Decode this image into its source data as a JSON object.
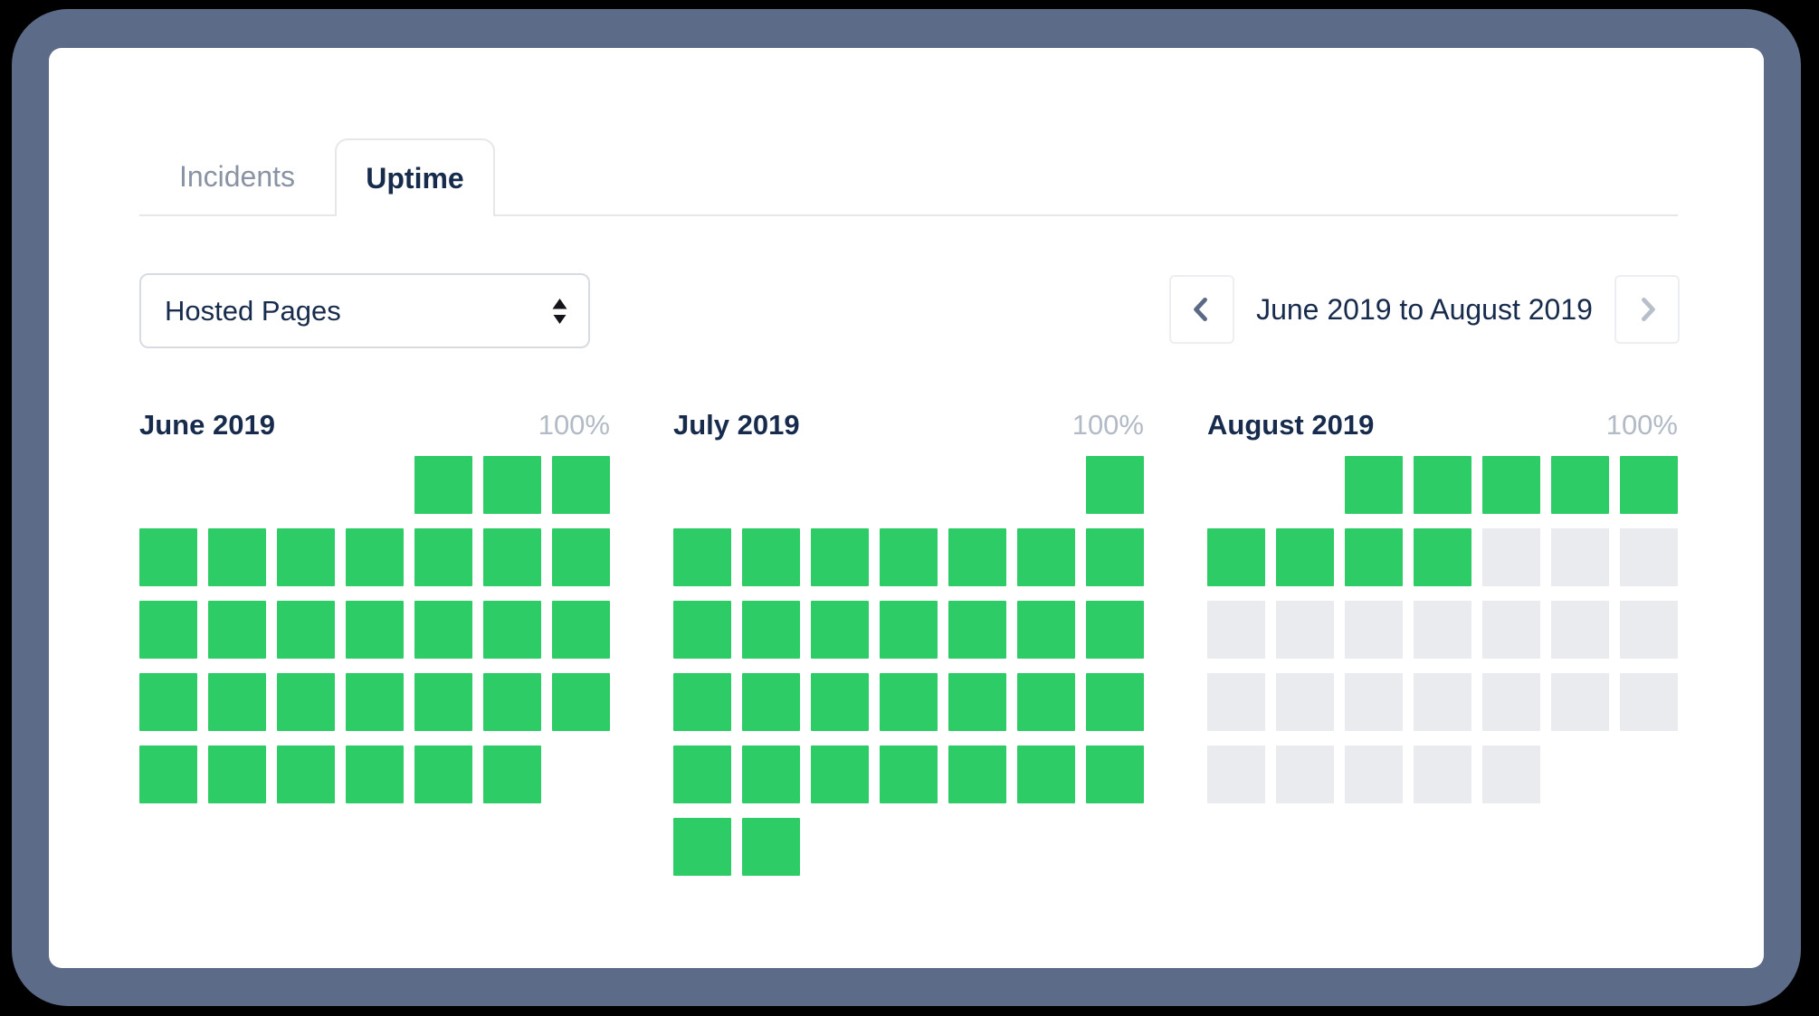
{
  "theme": {
    "accent_up": "#2ecc66",
    "future_day": "#e9ebef",
    "frame": "#5c6b87",
    "navy": "#172b4d",
    "muted": "#8993a4",
    "light": "#b2bac6",
    "border": "#e5e7ea"
  },
  "tabs": {
    "items": [
      {
        "label": "Incidents",
        "active": false
      },
      {
        "label": "Uptime",
        "active": true
      }
    ]
  },
  "filters": {
    "component_select": {
      "value": "Hosted Pages"
    }
  },
  "pagination": {
    "label": "June 2019 to August 2019",
    "prev": {
      "enabled": true
    },
    "next": {
      "enabled": false
    }
  },
  "months": [
    {
      "title": "June 2019",
      "uptime_label": "100%",
      "days_in_month": 30,
      "first_day_column": 5,
      "up_days": 30
    },
    {
      "title": "July 2019",
      "uptime_label": "100%",
      "days_in_month": 31,
      "first_day_column": 7,
      "up_days": 31
    },
    {
      "title": "August 2019",
      "uptime_label": "100%",
      "days_in_month": 31,
      "first_day_column": 3,
      "up_days": 9
    }
  ]
}
